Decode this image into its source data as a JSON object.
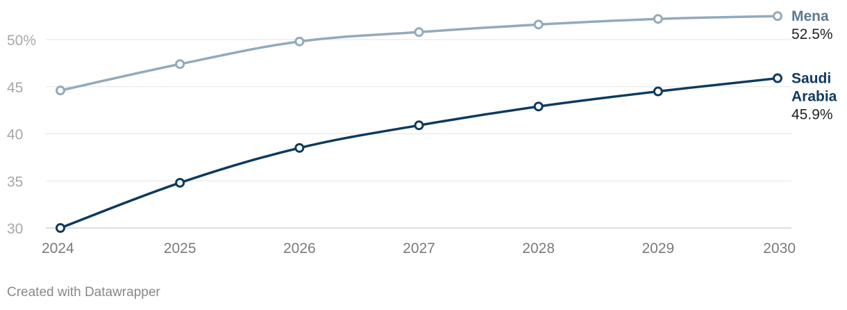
{
  "chart_data": {
    "type": "line",
    "title": "",
    "xlabel": "",
    "ylabel": "",
    "categories": [
      "2024",
      "2025",
      "2026",
      "2027",
      "2028",
      "2029",
      "2030"
    ],
    "ylim": [
      30,
      53
    ],
    "yticks": [
      {
        "value": 30,
        "label": "30"
      },
      {
        "value": 35,
        "label": "35"
      },
      {
        "value": 40,
        "label": "40"
      },
      {
        "value": 45,
        "label": "45"
      },
      {
        "value": 50,
        "label": "50%"
      }
    ],
    "grid": true,
    "series": [
      {
        "name": "Mena",
        "name_lines": [
          "Mena"
        ],
        "color": "#92aabc",
        "label_color": "#5f7a8e",
        "values": [
          44.6,
          47.4,
          49.8,
          50.8,
          51.6,
          52.2,
          52.5
        ],
        "end_label": "52.5%"
      },
      {
        "name": "Saudi Arabia",
        "name_lines": [
          "Saudi",
          "Arabia"
        ],
        "color": "#0d3a5f",
        "label_color": "#0d3a5f",
        "values": [
          30.0,
          34.8,
          38.5,
          40.9,
          42.9,
          44.5,
          45.9
        ],
        "end_label": "45.9%"
      }
    ]
  },
  "footer": {
    "credit": "Created with Datawrapper"
  }
}
